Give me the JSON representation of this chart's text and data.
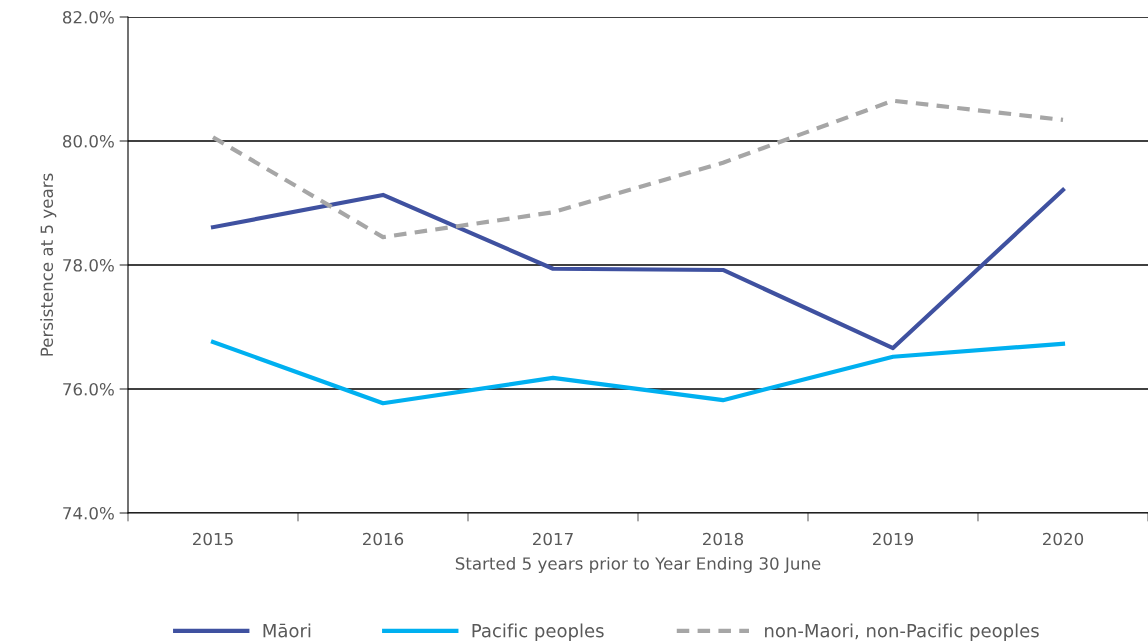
{
  "chart_data": {
    "type": "line",
    "xlabel": "Started 5 years prior to Year Ending 30 June",
    "ylabel": "Persistence at 5 years",
    "categories": [
      "2015",
      "2016",
      "2017",
      "2018",
      "2019",
      "2020"
    ],
    "series": [
      {
        "name": "Māori",
        "color": "#3f51a0",
        "line_style": "solid",
        "values": [
          78.61,
          79.13,
          77.94,
          77.92,
          76.66,
          79.21
        ]
      },
      {
        "name": "Pacific peoples",
        "color": "#00b0f0",
        "line_style": "solid",
        "values": [
          76.76,
          75.77,
          76.18,
          75.82,
          76.52,
          76.73
        ]
      },
      {
        "name": "non-Maori, non-Pacific peoples",
        "color": "#a6a6a6",
        "line_style": "dashed",
        "values": [
          80.06,
          78.45,
          78.85,
          79.65,
          80.65,
          80.34
        ]
      }
    ],
    "ylim": [
      74,
      82
    ],
    "yticks": [
      {
        "value": 74,
        "label": "74.0%"
      },
      {
        "value": 76,
        "label": "76.0%"
      },
      {
        "value": 78,
        "label": "78.0%"
      },
      {
        "value": 80,
        "label": "80.0%"
      },
      {
        "value": 82,
        "label": "82.0%"
      }
    ],
    "grid": "y",
    "legend": "bottom",
    "marker": "none"
  }
}
